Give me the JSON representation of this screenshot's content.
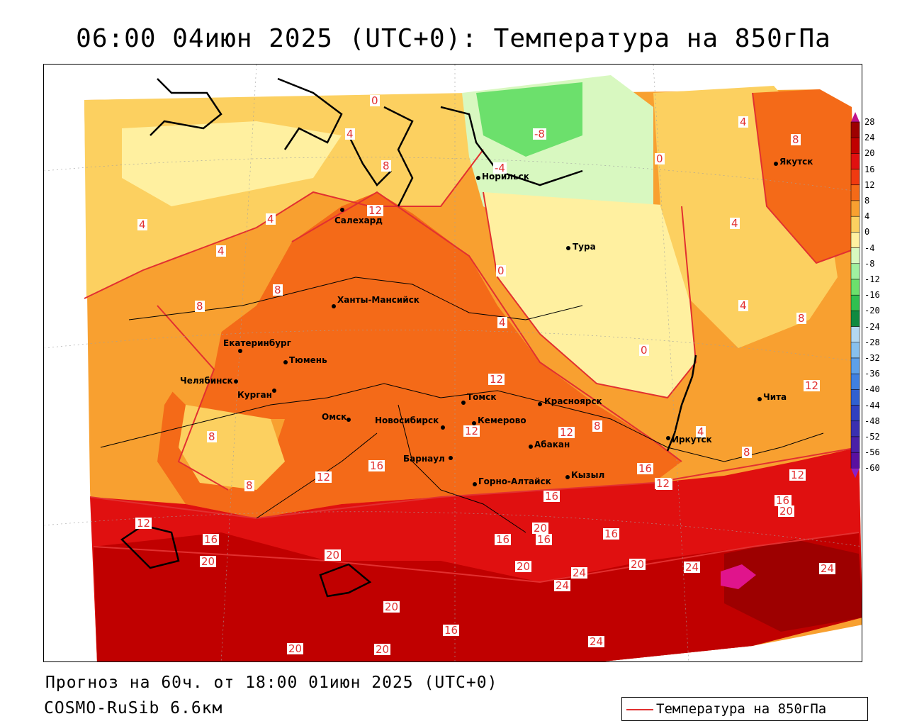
{
  "title": "06:00 04июн 2025 (UTC+0): Температура на 850гПа",
  "forecast": "Прогноз на 60ч. от 18:00 01июн 2025 (UTC+0)",
  "model": "COSMO-RuSib 6.6км",
  "legend_label": "Температура на 850гПа",
  "scale": {
    "labels": [
      "28",
      "24",
      "20",
      "16",
      "12",
      "8",
      "4",
      "0",
      "-4",
      "-8",
      "-12",
      "-16",
      "-20",
      "-24",
      "-28",
      "-32",
      "-36",
      "-40",
      "-44",
      "-48",
      "-52",
      "-56",
      "-60"
    ],
    "colors": [
      "#9d0000",
      "#c00000",
      "#e01010",
      "#f03a10",
      "#f46a18",
      "#f8a030",
      "#fcd060",
      "#fff0a0",
      "#d8f8c0",
      "#a0f0a0",
      "#6ce06c",
      "#30c050",
      "#108a40",
      "#b4d8f0",
      "#88c0ec",
      "#5ea0e8",
      "#4080e0",
      "#3060d0",
      "#3040c0",
      "#3a30b0",
      "#4a20a8",
      "#5a10a0",
      "#6a0090"
    ]
  },
  "cities": [
    {
      "name": "Якутск"
    },
    {
      "name": "Норильск"
    },
    {
      "name": "Тура"
    },
    {
      "name": "Салехард"
    },
    {
      "name": "Ханты-Мансийск"
    },
    {
      "name": "Екатеринбург"
    },
    {
      "name": "Тюмень"
    },
    {
      "name": "Челябинск"
    },
    {
      "name": "Курган"
    },
    {
      "name": "Омск"
    },
    {
      "name": "Новосибирск"
    },
    {
      "name": "Томск"
    },
    {
      "name": "Кемерово"
    },
    {
      "name": "Красноярск"
    },
    {
      "name": "Барнаул"
    },
    {
      "name": "Абакан"
    },
    {
      "name": "Горно-Алтайск"
    },
    {
      "name": "Кызыл"
    },
    {
      "name": "Иркутск"
    },
    {
      "name": "Чита"
    }
  ],
  "isolines": [
    "0",
    "4",
    "8",
    "-8",
    "-4",
    "4",
    "8",
    "4",
    "0",
    "12",
    "4",
    "4",
    "8",
    "8",
    "0",
    "4",
    "8",
    "4",
    "4",
    "0",
    "12",
    "8",
    "12",
    "12",
    "8",
    "8",
    "12",
    "12",
    "16",
    "16",
    "12",
    "8",
    "4",
    "12",
    "16",
    "12",
    "16",
    "20",
    "20",
    "16",
    "16",
    "20",
    "20",
    "24",
    "24",
    "24",
    "20",
    "24",
    "16",
    "16",
    "12",
    "20",
    "20",
    "16",
    "20",
    "24",
    "20",
    "16"
  ]
}
